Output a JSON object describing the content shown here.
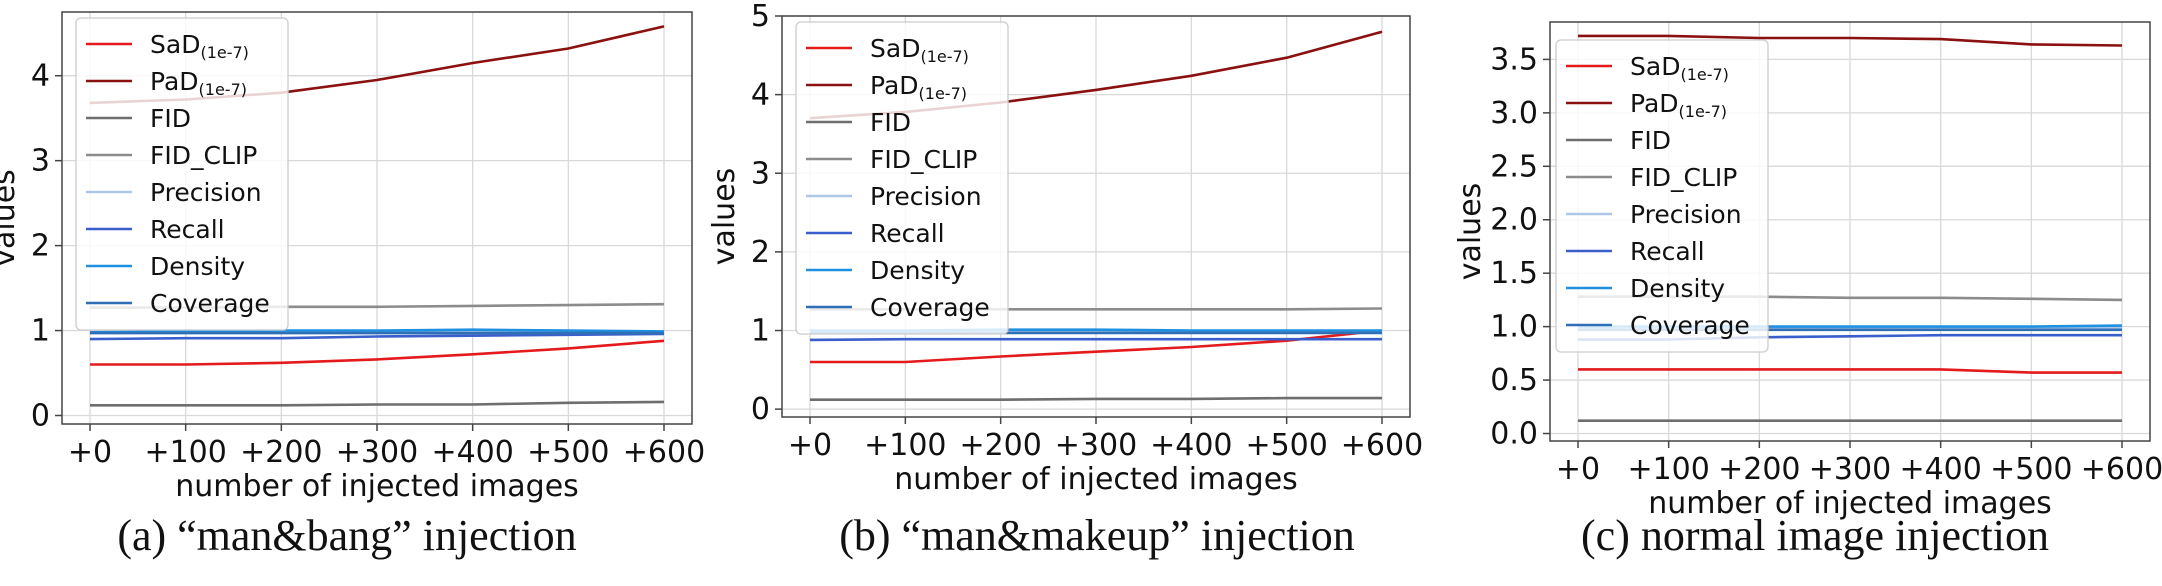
{
  "chart_data": [
    {
      "type": "line",
      "caption": "(a) “man&bang” injection",
      "xlabel": "number of injected images",
      "ylabel": "values",
      "categories": [
        "+0",
        "+100",
        "+200",
        "+300",
        "+400",
        "+500",
        "+600"
      ],
      "ylim": [
        -0.1,
        4.75
      ],
      "yticks": [
        0,
        1,
        2,
        3,
        4
      ],
      "ytick_labels": [
        "0",
        "1",
        "2",
        "3",
        "4"
      ],
      "grid": true,
      "legend_position": "upper-left",
      "series": [
        {
          "name": "SaD",
          "sub": "(1e-7)",
          "color": "#e41a1c",
          "values": [
            0.6,
            0.6,
            0.62,
            0.66,
            0.72,
            0.79,
            0.88
          ]
        },
        {
          "name": "PaD",
          "sub": "(1e-7)",
          "color": "#8b1010",
          "values": [
            3.68,
            3.72,
            3.8,
            3.95,
            4.15,
            4.32,
            4.58
          ]
        },
        {
          "name": "FID",
          "sub": "",
          "color": "#6e6e6e",
          "values": [
            0.12,
            0.12,
            0.12,
            0.13,
            0.13,
            0.15,
            0.16
          ]
        },
        {
          "name": "FID_CLIP",
          "sub": "",
          "color": "#8c8c8c",
          "values": [
            1.27,
            1.27,
            1.28,
            1.28,
            1.29,
            1.3,
            1.31
          ]
        },
        {
          "name": "Precision",
          "sub": "",
          "color": "#aec7e8",
          "values": [
            0.98,
            0.98,
            0.98,
            0.98,
            0.98,
            0.98,
            0.98
          ]
        },
        {
          "name": "Recall",
          "sub": "",
          "color": "#3a5fcd",
          "values": [
            0.9,
            0.91,
            0.91,
            0.93,
            0.94,
            0.95,
            0.96
          ]
        },
        {
          "name": "Density",
          "sub": "",
          "color": "#1f8fe0",
          "values": [
            0.98,
            0.99,
            1.0,
            1.0,
            1.01,
            1.0,
            0.99
          ]
        },
        {
          "name": "Coverage",
          "sub": "",
          "color": "#2f6fb5",
          "values": [
            0.97,
            0.97,
            0.97,
            0.97,
            0.97,
            0.97,
            0.97
          ]
        }
      ]
    },
    {
      "type": "line",
      "caption": "(b) “man&makeup” injection",
      "xlabel": "number of injected images",
      "ylabel": "values",
      "categories": [
        "+0",
        "+100",
        "+200",
        "+300",
        "+400",
        "+500",
        "+600"
      ],
      "ylim": [
        -0.1,
        5.0
      ],
      "yticks": [
        0,
        1,
        2,
        3,
        4,
        5
      ],
      "ytick_labels": [
        "0",
        "1",
        "2",
        "3",
        "4",
        "5"
      ],
      "grid": true,
      "legend_position": "upper-left",
      "series": [
        {
          "name": "SaD",
          "sub": "(1e-7)",
          "color": "#e41a1c",
          "values": [
            0.6,
            0.6,
            0.67,
            0.73,
            0.79,
            0.87,
            1.0
          ]
        },
        {
          "name": "PaD",
          "sub": "(1e-7)",
          "color": "#8b1010",
          "values": [
            3.7,
            3.78,
            3.9,
            4.06,
            4.24,
            4.47,
            4.8
          ]
        },
        {
          "name": "FID",
          "sub": "",
          "color": "#6e6e6e",
          "values": [
            0.12,
            0.12,
            0.12,
            0.13,
            0.13,
            0.14,
            0.14
          ]
        },
        {
          "name": "FID_CLIP",
          "sub": "",
          "color": "#8c8c8c",
          "values": [
            1.27,
            1.27,
            1.27,
            1.27,
            1.27,
            1.27,
            1.28
          ]
        },
        {
          "name": "Precision",
          "sub": "",
          "color": "#aec7e8",
          "values": [
            0.99,
            0.99,
            0.99,
            0.99,
            0.99,
            0.99,
            0.99
          ]
        },
        {
          "name": "Recall",
          "sub": "",
          "color": "#3a5fcd",
          "values": [
            0.88,
            0.89,
            0.89,
            0.89,
            0.89,
            0.89,
            0.89
          ]
        },
        {
          "name": "Density",
          "sub": "",
          "color": "#1f8fe0",
          "values": [
            1.0,
            1.0,
            1.01,
            1.01,
            1.0,
            1.0,
            1.0
          ]
        },
        {
          "name": "Coverage",
          "sub": "",
          "color": "#2f6fb5",
          "values": [
            0.97,
            0.97,
            0.97,
            0.97,
            0.97,
            0.97,
            0.97
          ]
        }
      ]
    },
    {
      "type": "line",
      "caption": "(c) normal image injection",
      "xlabel": "number of injected images",
      "ylabel": "values",
      "categories": [
        "+0",
        "+100",
        "+200",
        "+300",
        "+400",
        "+500",
        "+600"
      ],
      "ylim": [
        -0.07,
        3.85
      ],
      "yticks": [
        0,
        0.5,
        1,
        1.5,
        2,
        2.5,
        3,
        3.5
      ],
      "ytick_labels": [
        "0.0",
        "0.5",
        "1.0",
        "1.5",
        "2.0",
        "2.5",
        "3.0",
        "3.5"
      ],
      "grid": true,
      "legend_position": "upper-left",
      "series": [
        {
          "name": "SaD",
          "sub": "(1e-7)",
          "color": "#e41a1c",
          "values": [
            0.6,
            0.6,
            0.6,
            0.6,
            0.6,
            0.57,
            0.57
          ]
        },
        {
          "name": "PaD",
          "sub": "(1e-7)",
          "color": "#8b1010",
          "values": [
            3.72,
            3.72,
            3.7,
            3.7,
            3.69,
            3.64,
            3.63
          ]
        },
        {
          "name": "FID",
          "sub": "",
          "color": "#6e6e6e",
          "values": [
            0.12,
            0.12,
            0.12,
            0.12,
            0.12,
            0.12,
            0.12
          ]
        },
        {
          "name": "FID_CLIP",
          "sub": "",
          "color": "#8c8c8c",
          "values": [
            1.28,
            1.28,
            1.28,
            1.27,
            1.27,
            1.26,
            1.25
          ]
        },
        {
          "name": "Precision",
          "sub": "",
          "color": "#aec7e8",
          "values": [
            0.99,
            0.99,
            0.99,
            0.99,
            0.99,
            0.99,
            0.99
          ]
        },
        {
          "name": "Recall",
          "sub": "",
          "color": "#3a5fcd",
          "values": [
            0.88,
            0.88,
            0.9,
            0.91,
            0.92,
            0.92,
            0.92
          ]
        },
        {
          "name": "Density",
          "sub": "",
          "color": "#1f8fe0",
          "values": [
            1.0,
            1.0,
            1.0,
            1.0,
            1.0,
            1.0,
            1.01
          ]
        },
        {
          "name": "Coverage",
          "sub": "",
          "color": "#2f6fb5",
          "values": [
            0.97,
            0.97,
            0.97,
            0.97,
            0.97,
            0.97,
            0.97
          ]
        }
      ]
    }
  ]
}
